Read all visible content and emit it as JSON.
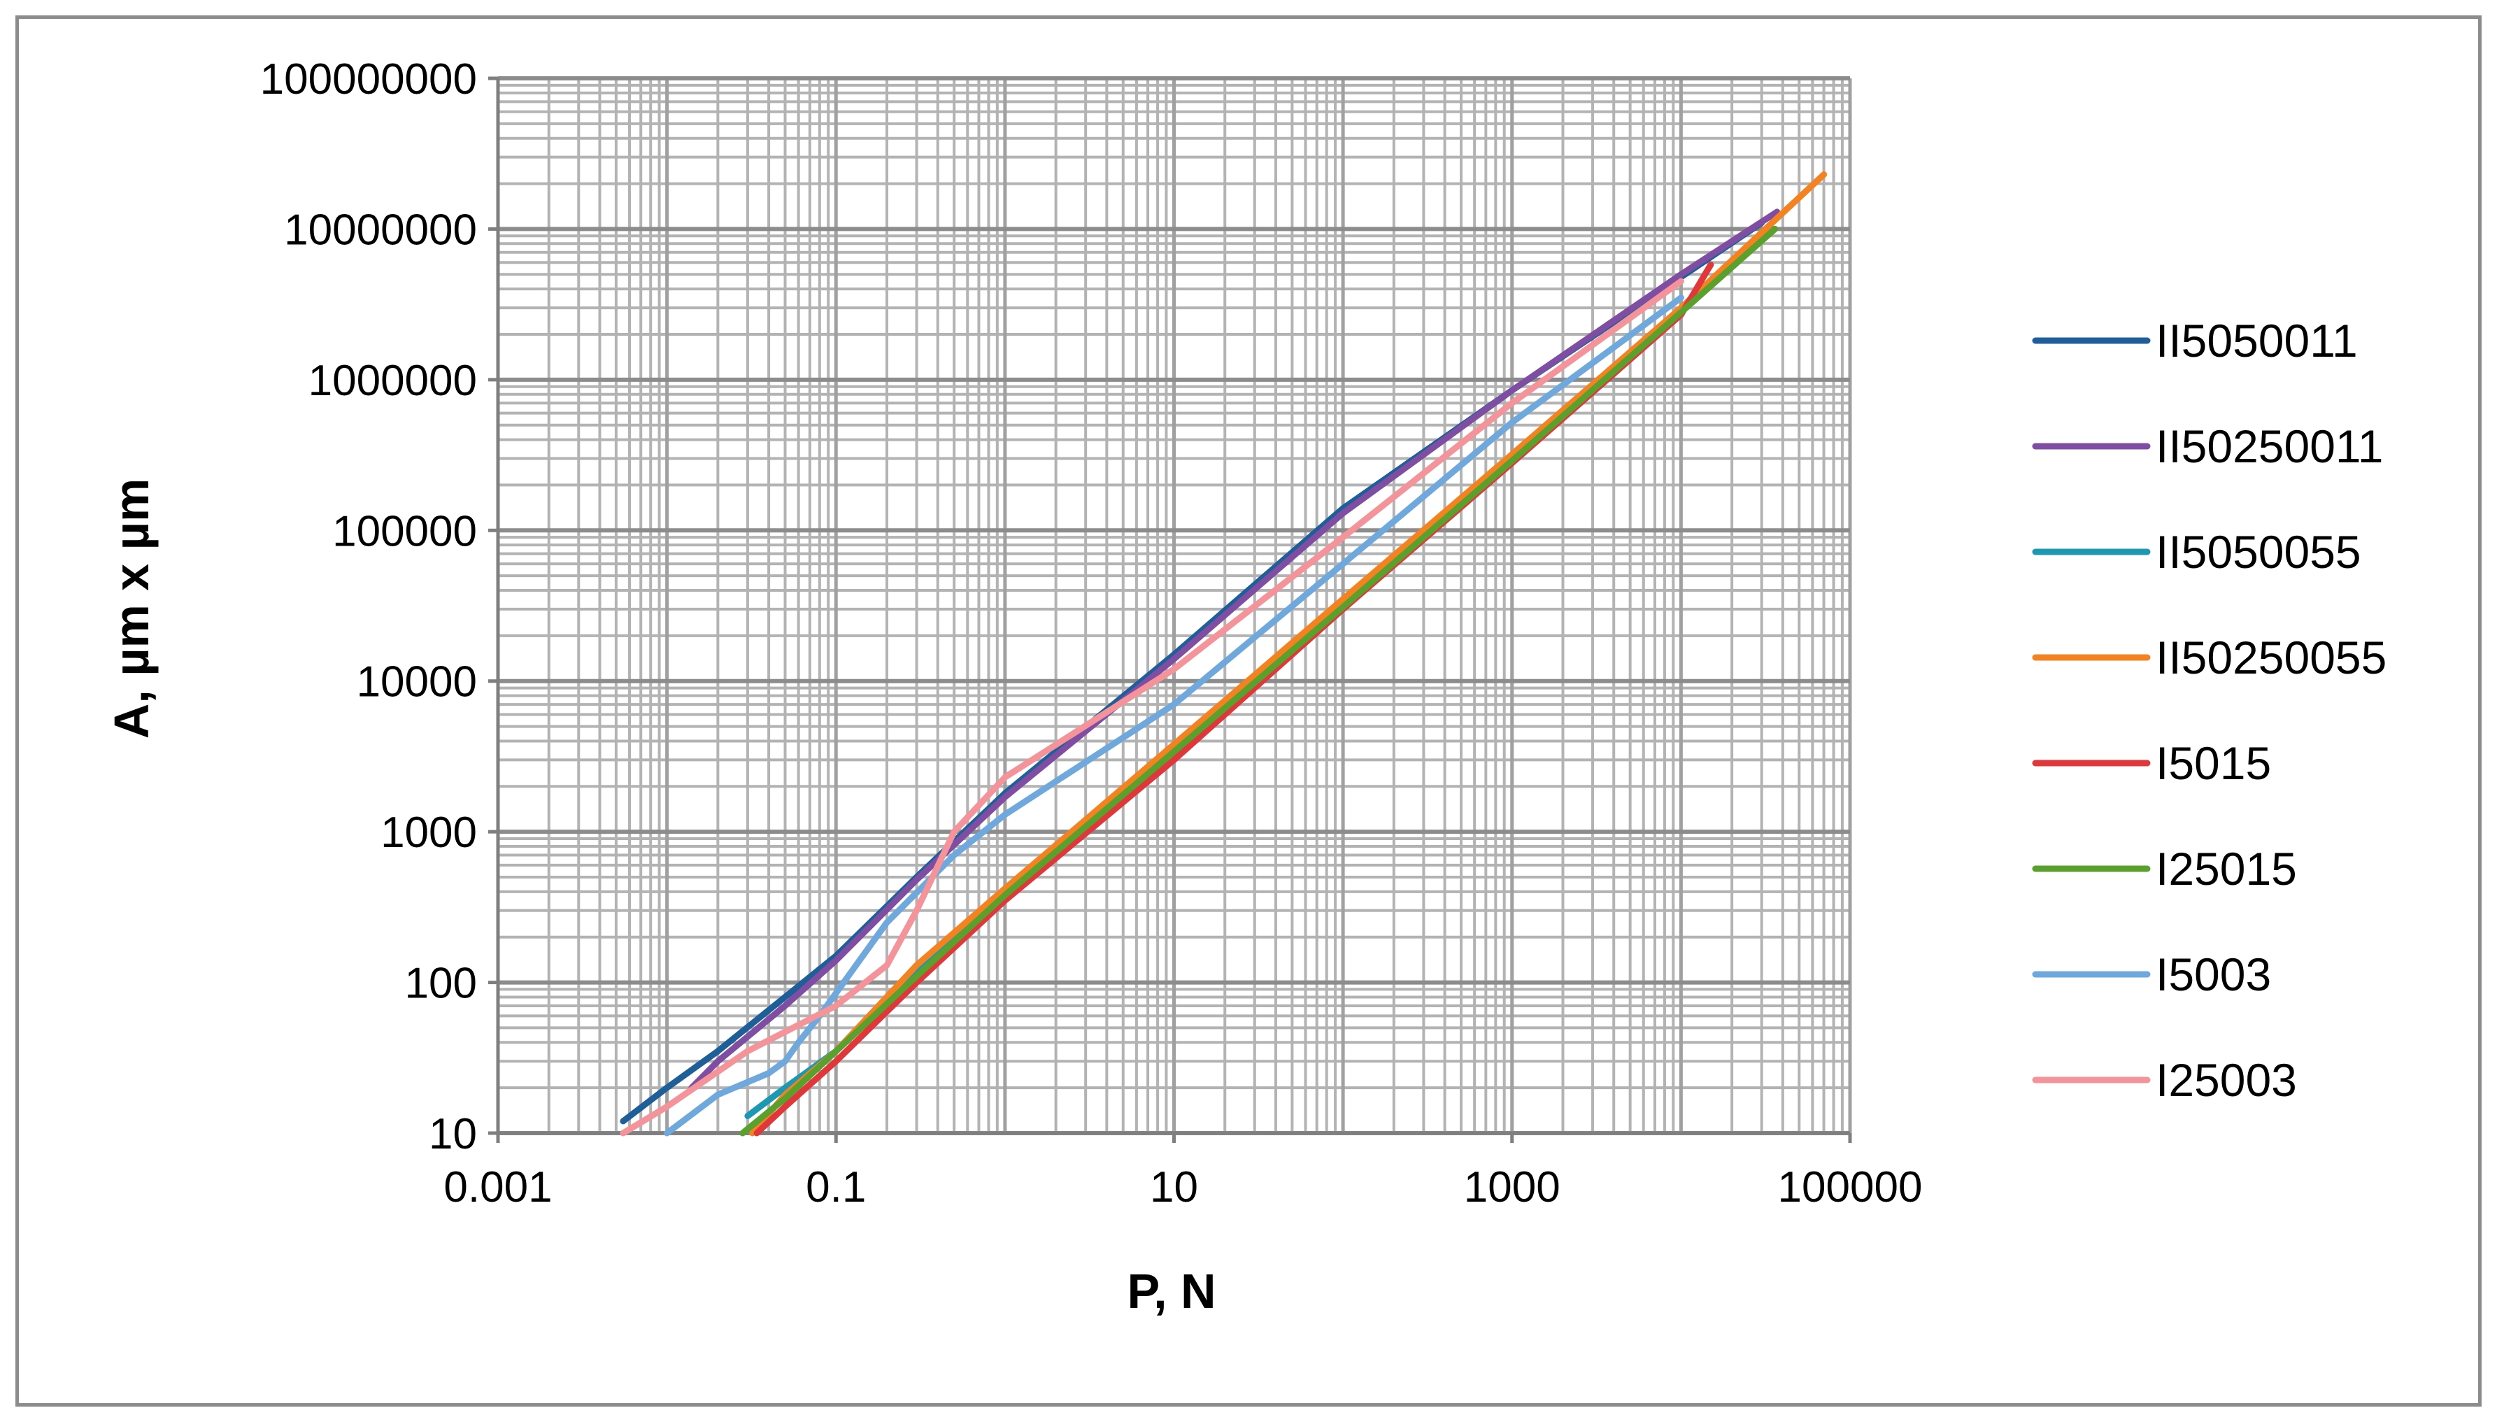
{
  "chart_data": {
    "type": "line",
    "title": "",
    "xlabel": "P, N",
    "ylabel": "A, µm x µm",
    "x_scale": "log",
    "y_scale": "log",
    "xlim": [
      0.001,
      100000
    ],
    "ylim": [
      10,
      100000000
    ],
    "x_tick_labels": [
      "0.001",
      "0.1",
      "10",
      "1000",
      "100000"
    ],
    "y_tick_labels": [
      "10",
      "100",
      "1000",
      "10000",
      "100000",
      "1000000",
      "10000000",
      "100000000"
    ],
    "grid": true,
    "legend_position": "right",
    "series": [
      {
        "name": "II5050011",
        "color": "#1f5f99",
        "x": [
          0.0055,
          0.01,
          0.02,
          0.05,
          0.1,
          0.3,
          1,
          10,
          100,
          1000,
          10000,
          30000
        ],
        "y": [
          12,
          20,
          35,
          80,
          150,
          500,
          1800,
          15000,
          140000,
          850000,
          4800000,
          11000000
        ]
      },
      {
        "name": "II50250011",
        "color": "#7f4ea3",
        "x": [
          0.014,
          0.02,
          0.05,
          0.1,
          0.3,
          1,
          10,
          100,
          1000,
          10000,
          37000
        ],
        "y": [
          20,
          30,
          70,
          140,
          480,
          1700,
          14000,
          130000,
          850000,
          5000000,
          13000000
        ]
      },
      {
        "name": "II5050055",
        "color": "#1c98b3",
        "x": [
          0.03,
          0.05,
          0.1,
          0.3,
          1,
          10,
          100,
          1000,
          10000,
          35000
        ],
        "y": [
          13,
          20,
          35,
          120,
          400,
          3500,
          30000,
          300000,
          2800000,
          10000000
        ]
      },
      {
        "name": "II50250055",
        "color": "#f58220",
        "x": [
          0.032,
          0.05,
          0.1,
          0.3,
          1,
          10,
          100,
          1000,
          10000,
          70000
        ],
        "y": [
          10,
          18,
          35,
          130,
          420,
          3800,
          35000,
          320000,
          3000000,
          23000000
        ]
      },
      {
        "name": "I5015",
        "color": "#e0373a",
        "x": [
          0.034,
          0.05,
          0.1,
          0.3,
          1,
          10,
          100,
          1000,
          10000,
          15000
        ],
        "y": [
          10,
          15,
          30,
          100,
          350,
          3000,
          30000,
          280000,
          2700000,
          5800000
        ]
      },
      {
        "name": "I25015",
        "color": "#5aa02c",
        "x": [
          0.028,
          0.05,
          0.1,
          0.3,
          1,
          10,
          100,
          1000,
          10000,
          36000
        ],
        "y": [
          10,
          17,
          35,
          110,
          380,
          3400,
          31000,
          290000,
          2800000,
          10000000
        ]
      },
      {
        "name": "I5003",
        "color": "#6fa8dc",
        "x": [
          0.01,
          0.02,
          0.04,
          0.05,
          0.06,
          0.08,
          0.2,
          0.5,
          1,
          10,
          100,
          1000,
          10000
        ],
        "y": [
          10,
          18,
          25,
          30,
          40,
          60,
          250,
          700,
          1300,
          7000,
          60000,
          520000,
          3500000
        ]
      },
      {
        "name": "I25003",
        "color": "#f4939a",
        "x": [
          0.0055,
          0.01,
          0.03,
          0.1,
          0.2,
          0.3,
          0.5,
          1,
          10,
          100,
          1000,
          10000
        ],
        "y": [
          10,
          15,
          35,
          70,
          130,
          300,
          1000,
          2300,
          12000,
          90000,
          700000,
          4500000
        ]
      }
    ]
  }
}
